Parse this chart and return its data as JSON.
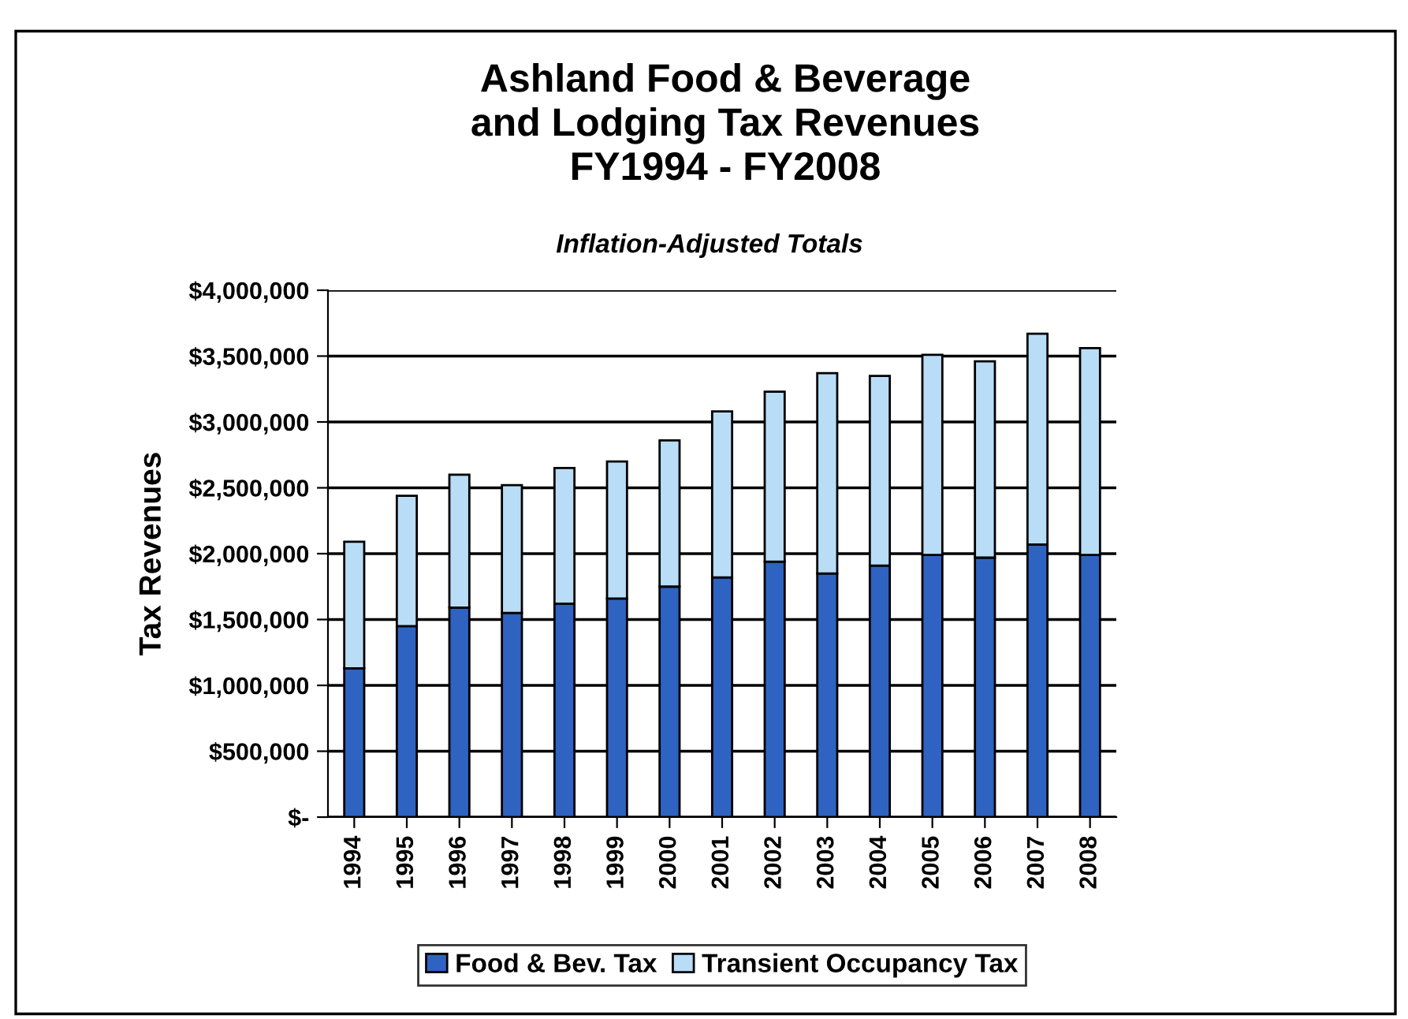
{
  "chart_data": {
    "type": "bar",
    "title": "Ashland Food & Beverage\nand Lodging Tax Revenues\nFY1994 - FY2008",
    "subtitle": "Inflation-Adjusted Totals",
    "ylabel": "Tax Revenues",
    "categories": [
      "1994",
      "1995",
      "1996",
      "1997",
      "1998",
      "1999",
      "2000",
      "2001",
      "2002",
      "2003",
      "2004",
      "2005",
      "2006",
      "2007",
      "2008"
    ],
    "stacked": true,
    "series": [
      {
        "name": "Food & Bev. Tax",
        "color": "#2f63c2",
        "values": [
          1130000,
          1450000,
          1590000,
          1550000,
          1620000,
          1660000,
          1750000,
          1820000,
          1940000,
          1850000,
          1910000,
          1990000,
          1970000,
          2070000,
          1990000
        ]
      },
      {
        "name": "Transient Occupancy Tax",
        "color": "#b9ddf7",
        "values": [
          960000,
          990000,
          1010000,
          970000,
          1030000,
          1040000,
          1110000,
          1260000,
          1290000,
          1520000,
          1440000,
          1520000,
          1490000,
          1600000,
          1570000
        ]
      }
    ],
    "ylim": [
      0,
      4000000
    ],
    "yticks": [
      {
        "value": 0,
        "label": "$-"
      },
      {
        "value": 500000,
        "label": "$500,000"
      },
      {
        "value": 1000000,
        "label": "$1,000,000"
      },
      {
        "value": 1500000,
        "label": "$1,500,000"
      },
      {
        "value": 2000000,
        "label": "$2,000,000"
      },
      {
        "value": 2500000,
        "label": "$2,500,000"
      },
      {
        "value": 3000000,
        "label": "$3,000,000"
      },
      {
        "value": 3500000,
        "label": "$3,500,000"
      },
      {
        "value": 4000000,
        "label": "$4,000,000"
      }
    ],
    "grid": "y",
    "legend": "bottom"
  }
}
